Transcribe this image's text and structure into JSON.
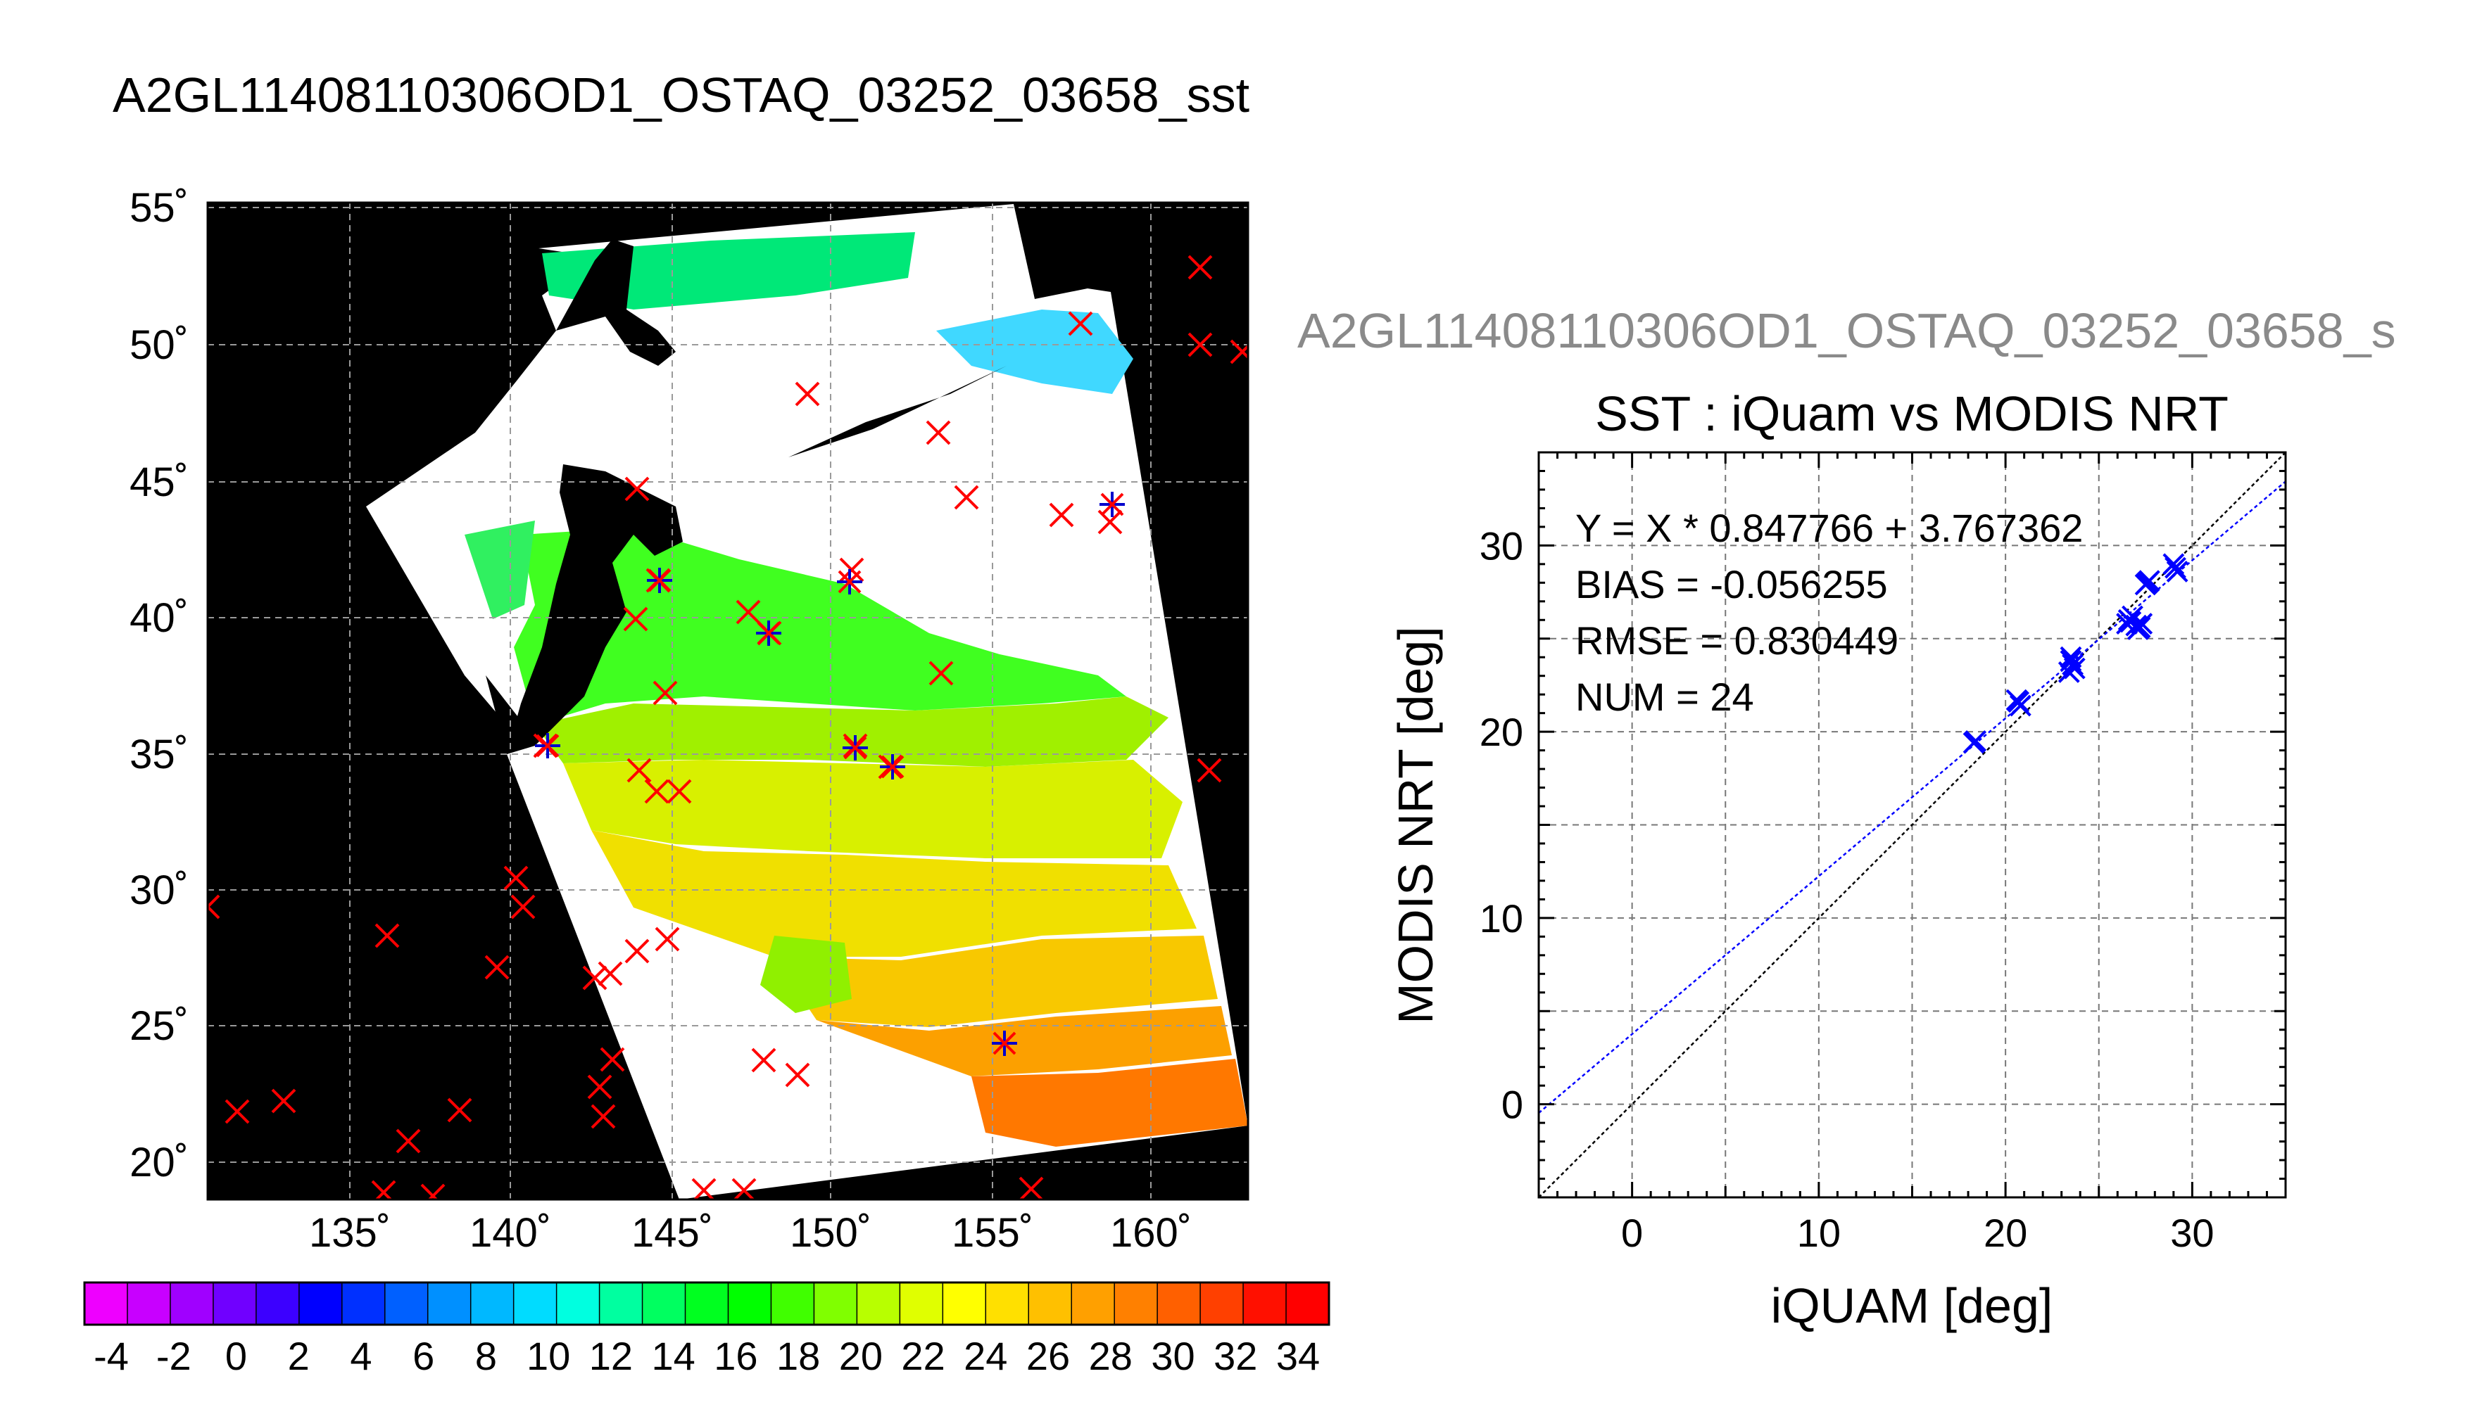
{
  "map_title": "A2GL11408110306OD1_OSTAQ_03252_03658_sst",
  "scatter_file_title": "A2GL11408110306OD1_OSTAQ_03252_03658_s",
  "colors": {
    "map_background": "#000000",
    "swath_no_data": "#ffffff",
    "buoy_marker": "#ff0000",
    "matchup_marker": "#0000cc",
    "grid": "#9a9a9a",
    "fit_line": "#0000ff",
    "one_to_one_line": "#000000",
    "right_title": "#8a8a8a"
  },
  "map": {
    "lat_labels": [
      "55˚",
      "50˚",
      "45˚",
      "40˚",
      "35˚",
      "30˚",
      "25˚",
      "20˚"
    ],
    "lon_labels": [
      "135˚",
      "140˚",
      "145˚",
      "150˚",
      "155˚",
      "160˚"
    ]
  },
  "colorbar": {
    "labels": [
      "-4",
      "-2",
      "0",
      "2",
      "4",
      "6",
      "8",
      "10",
      "12",
      "14",
      "16",
      "18",
      "20",
      "22",
      "24",
      "26",
      "28",
      "30",
      "32",
      "34"
    ],
    "colors": [
      "#ee00ff",
      "#c800ff",
      "#a000ff",
      "#7000ff",
      "#3c00ff",
      "#0000ff",
      "#0030ff",
      "#0060ff",
      "#0090ff",
      "#00b8ff",
      "#00dcff",
      "#00ffe0",
      "#00ffa0",
      "#00ff60",
      "#00ff20",
      "#00ff00",
      "#40ff00",
      "#80ff00",
      "#b8ff00",
      "#e0ff00",
      "#ffff00",
      "#ffe000",
      "#ffc000",
      "#ffa000",
      "#ff8000",
      "#ff6000",
      "#ff4000",
      "#ff1000",
      "#ff0000"
    ]
  },
  "chart_data": {
    "type": "scatter",
    "title": "SST : iQuam vs MODIS NRT",
    "xlabel": "iQUAM [deg]",
    "ylabel": "MODIS NRT [deg]",
    "xlim": [
      -5,
      35
    ],
    "ylim": [
      -5,
      35
    ],
    "x_ticks": [
      "0",
      "10",
      "20",
      "30"
    ],
    "y_ticks": [
      "0",
      "10",
      "20",
      "30"
    ],
    "grid": true,
    "annotations": [
      "Y = X * 0.847766 + 3.767362",
      "BIAS = -0.056255",
      "RMSE = 0.830449",
      "NUM = 24"
    ],
    "fit": {
      "slope": 0.847766,
      "intercept": 3.767362
    },
    "points": [
      [
        18.3,
        19.4
      ],
      [
        20.6,
        21.7
      ],
      [
        20.8,
        21.4
      ],
      [
        23.5,
        24.0
      ],
      [
        23.4,
        23.2
      ],
      [
        23.6,
        23.6
      ],
      [
        26.5,
        25.8
      ],
      [
        26.6,
        26.0
      ],
      [
        27.0,
        25.7
      ],
      [
        27.1,
        25.5
      ],
      [
        27.3,
        25.8
      ],
      [
        27.6,
        28.0
      ],
      [
        27.7,
        28.1
      ],
      [
        29.1,
        28.8
      ],
      [
        29.2,
        28.6
      ],
      [
        26.8,
        26.2
      ],
      [
        23.5,
        23.8
      ],
      [
        20.7,
        21.6
      ],
      [
        27.2,
        25.6
      ],
      [
        29.0,
        29.0
      ],
      [
        27.5,
        27.9
      ],
      [
        18.4,
        19.5
      ],
      [
        26.7,
        25.9
      ],
      [
        23.7,
        23.4
      ]
    ]
  }
}
